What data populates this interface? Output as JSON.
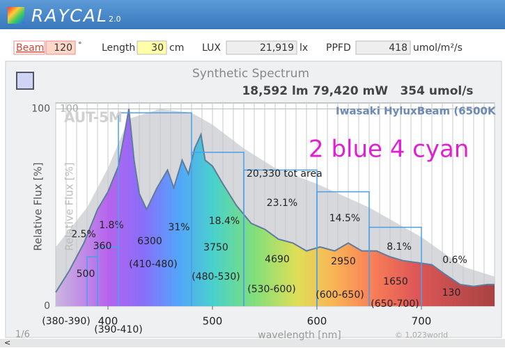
{
  "header": {
    "title": "RAYCAL",
    "version": "2.0"
  },
  "controls": {
    "beam_label": "Beam",
    "beam": 120,
    "beam_unit": "°",
    "length_label": "Length",
    "length": 30,
    "length_unit": "cm",
    "lux_label": "LUX",
    "lux": "21,919",
    "lux_unit": "lx",
    "ppfd_label": "PPFD",
    "ppfd": 418,
    "ppfd_unit": "umol/m²/s"
  },
  "chart_data": {
    "type": "line",
    "title": "Synthetic Spectrum",
    "stats": [
      "18,592 lm",
      "79,420 mW",
      "354 umol/s"
    ],
    "ylabel": "Relative Flux [%]",
    "xlabel": "wavelength [nm]",
    "y2label": "Relative Flux [%]",
    "annotation": "2 blue 4 cyan",
    "total_area": "20,330 tot area",
    "watermark": "© 1,023world",
    "page": "1/6",
    "xlim": [
      350,
      770
    ],
    "xticks": [
      400,
      500,
      600,
      700
    ],
    "xgrid": [
      350,
      360,
      370,
      380,
      390,
      400,
      410,
      420,
      430,
      440,
      450,
      460,
      470,
      480,
      490,
      500,
      510,
      520,
      530,
      540,
      550,
      560,
      570,
      580,
      590,
      600,
      610,
      620,
      630,
      640,
      650,
      660,
      670,
      680,
      690,
      700,
      710,
      720,
      730,
      740,
      750,
      760,
      770
    ],
    "ylim": [
      0,
      103
    ],
    "yticks": [
      0,
      100
    ],
    "y2lim": [
      0,
      103
    ],
    "y2ticks": [
      100
    ],
    "grid": true,
    "legend": "top-right",
    "series": [
      {
        "name": "AUT-5M",
        "color": "#c4c8cc",
        "axis": "y2",
        "x": [
          350,
          380,
          400,
          420,
          450,
          480,
          500,
          530,
          560,
          600,
          650,
          700,
          740,
          770
        ],
        "values": [
          30,
          50,
          70,
          95,
          100,
          98,
          92,
          80,
          70,
          62,
          50,
          35,
          20,
          15
        ]
      },
      {
        "name": "Iwasaki HyluxBeam (6500K",
        "color": "#5f7c9c",
        "x": [
          350,
          363,
          377,
          390,
          400,
          410,
          415,
          420,
          425,
          430,
          437,
          447,
          457,
          463,
          471,
          477,
          483,
          489,
          493,
          500,
          510,
          523,
          537,
          550,
          563,
          577,
          590,
          603,
          617,
          630,
          643,
          657,
          670,
          683,
          697,
          710,
          723,
          737,
          750,
          763,
          770
        ],
        "values": [
          7,
          18,
          32,
          49,
          58,
          71,
          85,
          100,
          74,
          57,
          49,
          60,
          69,
          60,
          74,
          67,
          80,
          87,
          74,
          71,
          62,
          51,
          42,
          39,
          34,
          32,
          28,
          30,
          28,
          32,
          28,
          28,
          25,
          23,
          22,
          21,
          16,
          11,
          10,
          11,
          11
        ]
      }
    ],
    "bands": [
      {
        "range": "(380-390)",
        "share": 2.5,
        "share_label": "2.5%",
        "ppfd": 500,
        "height": 25
      },
      {
        "range": "(390-410)",
        "share": 1.8,
        "share_label": "1.8%",
        "ppfd": 360,
        "height": 30
      },
      {
        "range": "(410-480)",
        "share": 31,
        "share_label": "31%",
        "ppfd": 6300,
        "height": 98
      },
      {
        "range": "(480-530)",
        "share": 18.4,
        "share_label": "18.4%",
        "ppfd": 3750,
        "height": 78
      },
      {
        "range": "(530-600)",
        "share": 23.1,
        "share_label": "23.1%",
        "ppfd": 4690,
        "height": 69
      },
      {
        "range": "(600-650)",
        "share": 14.5,
        "share_label": "14.5%",
        "ppfd": 2950,
        "height": 58
      },
      {
        "range": "(650-700)",
        "share": 8.1,
        "share_label": "8.1%",
        "ppfd": 1650,
        "height": 40
      },
      {
        "range": null,
        "share": 0.6,
        "share_label": "0.6%",
        "ppfd": 130,
        "height": null
      }
    ]
  }
}
